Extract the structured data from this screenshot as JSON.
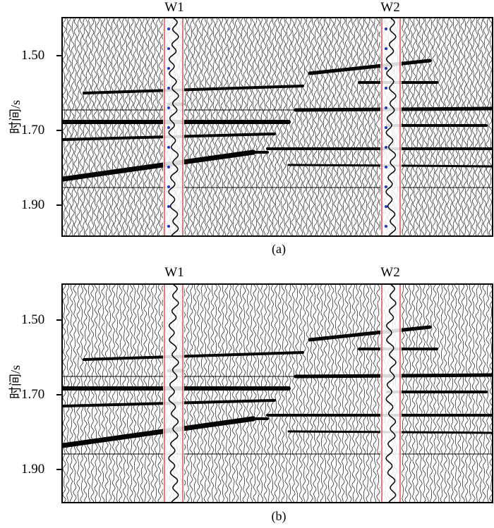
{
  "panels": [
    {
      "id": "a",
      "caption": "(a)",
      "wells": [
        "W1",
        "W2"
      ],
      "ylabel": "时间/s",
      "ticks": [
        "1.50",
        "1.70",
        "1.90"
      ],
      "well_colors": {
        "curve": "#cc0000",
        "log_blue": "#1a33cc"
      }
    },
    {
      "id": "b",
      "caption": "(b)",
      "wells": [
        "W1",
        "W2"
      ],
      "ylabel": "时间/s",
      "ticks": [
        "1.50",
        "1.70",
        "1.90"
      ],
      "well_colors": {
        "curve": "#cc0000"
      }
    }
  ]
}
